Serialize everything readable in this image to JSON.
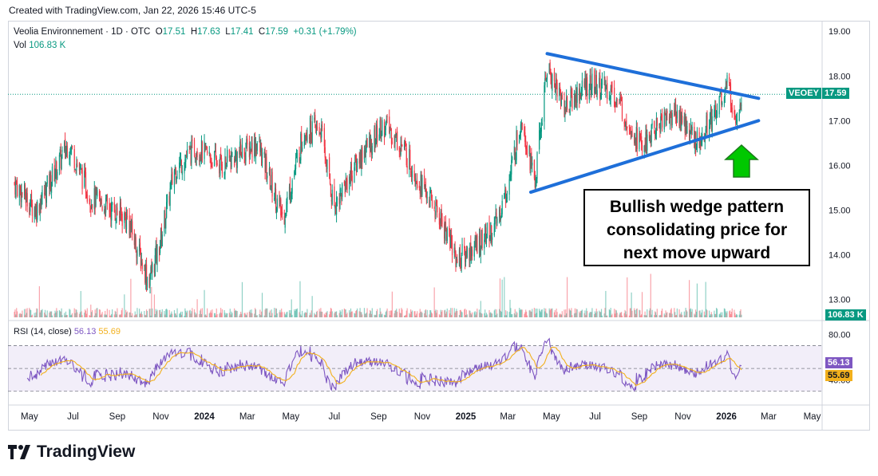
{
  "header": {
    "created": "Created with TradingView.com, Jan 22, 2026 15:46 UTC-5"
  },
  "legend": {
    "name": "Veolia Environnement · 1D · OTC",
    "o_label": "O",
    "o": "17.51",
    "h_label": "H",
    "h": "17.63",
    "l_label": "L",
    "l": "17.41",
    "c_label": "C",
    "c": "17.59",
    "change": "+0.31 (+1.79%)",
    "vol_label": "Vol",
    "vol": "106.83 K"
  },
  "rsi_legend": {
    "label": "RSI (14, close)",
    "rsi": "56.13",
    "ma": "55.69"
  },
  "annotation": [
    "Bullish wedge pattern",
    "consolidating price for",
    "next move upward"
  ],
  "footer": {
    "brand": "TradingView"
  },
  "colors": {
    "up": "#089981",
    "down": "#f23645",
    "trend": "#1e6fd9",
    "arrow": "#00c800",
    "rsi": "#7e57c2",
    "rsi_ma": "#f2b01c"
  },
  "chart_data": {
    "type": "candlestick",
    "ticker": "VEOEY",
    "last_price": "17.59",
    "last_volume": "106.83 K",
    "price_axis": {
      "ticks": [
        "19.00",
        "18.00",
        "17.00",
        "16.00",
        "15.00",
        "14.00",
        "13.00"
      ],
      "ylim": [
        12.6,
        19.2
      ]
    },
    "rsi_axis": {
      "ticks": [
        "80.00",
        "40.00"
      ],
      "levels": [
        70,
        50,
        30
      ],
      "rsi_last": "56.13",
      "ma_last": "55.69"
    },
    "time_axis": {
      "labels": [
        "May",
        "Jul",
        "Sep",
        "Nov",
        "2024",
        "Mar",
        "May",
        "Jul",
        "Sep",
        "Nov",
        "2025",
        "Mar",
        "May",
        "Jul",
        "Sep",
        "Nov",
        "2026",
        "Mar",
        "May"
      ],
      "bold": [
        "2024",
        "2025",
        "2026"
      ]
    },
    "close_path": {
      "dates": [
        "2023-04-10",
        "2023-05-10",
        "2023-06-25",
        "2023-07-25",
        "2023-09-15",
        "2023-10-15",
        "2023-10-30",
        "2023-11-20",
        "2023-12-20",
        "2024-01-25",
        "2024-03-15",
        "2024-04-20",
        "2024-05-20",
        "2024-06-12",
        "2024-06-30",
        "2024-08-10",
        "2024-09-10",
        "2024-10-05",
        "2024-10-30",
        "2024-11-30",
        "2024-12-20",
        "2025-01-15",
        "2025-02-10",
        "2025-03-01",
        "2025-03-20",
        "2025-04-08",
        "2025-04-25",
        "2025-05-20",
        "2025-06-20",
        "2025-07-20",
        "2025-08-10",
        "2025-09-05",
        "2025-10-01",
        "2025-10-25",
        "2025-11-20",
        "2025-12-15",
        "2026-01-02",
        "2026-01-15",
        "2026-01-22"
      ],
      "close": [
        15.6,
        15.0,
        16.5,
        15.3,
        14.8,
        13.4,
        14.2,
        15.9,
        16.4,
        16.0,
        16.5,
        14.8,
        16.8,
        16.8,
        15.1,
        16.3,
        16.9,
        16.4,
        15.6,
        14.7,
        13.9,
        14.2,
        14.6,
        15.5,
        17.1,
        15.6,
        18.2,
        17.3,
        17.8,
        17.7,
        17.2,
        16.4,
        17.0,
        17.2,
        16.5,
        17.2,
        17.8,
        17.1,
        17.59
      ]
    },
    "wedge": {
      "upper": [
        {
          "date": "2025-04-25",
          "price": 18.5
        },
        {
          "date": "2026-02-15",
          "price": 17.5
        }
      ],
      "lower": [
        {
          "date": "2025-04-02",
          "price": 15.4
        },
        {
          "date": "2026-02-15",
          "price": 17.0
        }
      ]
    }
  }
}
